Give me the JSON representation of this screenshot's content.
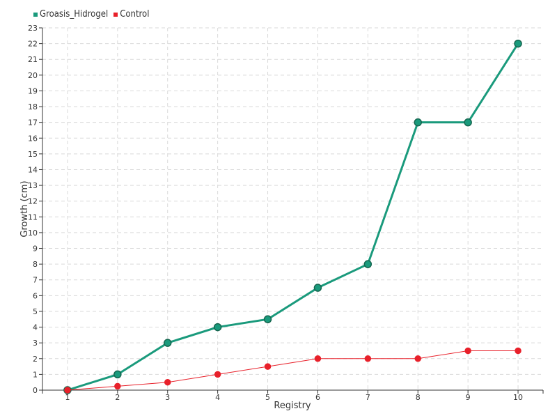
{
  "chart_data": {
    "type": "line",
    "x": [
      1,
      2,
      3,
      4,
      5,
      6,
      7,
      8,
      9,
      10
    ],
    "series": [
      {
        "name": "Groasis_Hidrogel",
        "color": "#1a9a7c",
        "values": [
          0,
          1,
          3,
          4,
          4.5,
          6.5,
          8,
          17,
          17,
          22
        ]
      },
      {
        "name": "Control",
        "color": "#e8202a",
        "values": [
          0,
          0.25,
          0.5,
          1,
          1.5,
          2,
          2,
          2,
          2.5,
          2.5
        ]
      }
    ],
    "xlabel": "Registry",
    "ylabel": "Growth (cm)",
    "xlim": [
      0.5,
      10.5
    ],
    "ylim": [
      0,
      23
    ],
    "y_ticks": [
      0,
      1,
      2,
      3,
      4,
      5,
      6,
      7,
      8,
      9,
      10,
      11,
      12,
      13,
      14,
      15,
      16,
      17,
      18,
      19,
      20,
      21,
      22,
      23
    ],
    "grid": true,
    "legend_position": "top-left"
  }
}
